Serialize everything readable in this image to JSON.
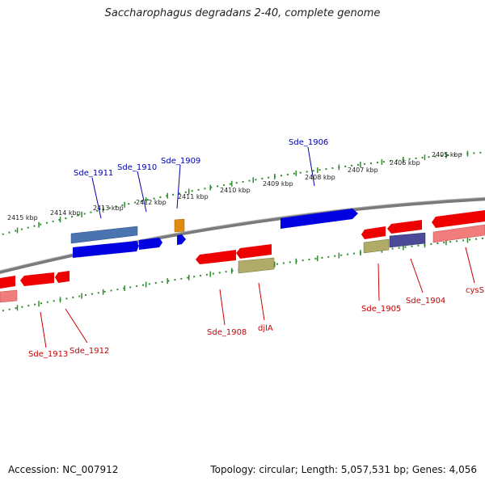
{
  "title": "Saccharophagus degradans 2-40, complete genome",
  "footer": {
    "accession": "Accession: NC_007912",
    "summary": "Topology: circular; Length: 5,057,531 bp; Genes: 4,056"
  },
  "colors": {
    "backbone": "#808080",
    "ticks": "#2e8b2e",
    "forward_gene": "#0000e0",
    "reverse_gene": "#ee0000",
    "forward_label": "#0000aa",
    "reverse_label": "#cc0000",
    "feature_steelblue": "#4a74b0",
    "feature_salmon": "#f07c7c",
    "feature_khaki": "#b0ab68",
    "feature_slate": "#4a4a98",
    "feature_orange": "#e08a10"
  },
  "ruler_labels": [
    "2405 kbp",
    "2406 kbp",
    "2407 kbp",
    "2408 kbp",
    "2409 kbp",
    "2410 kbp",
    "2411 kbp",
    "2412 kbp",
    "2413 kbp",
    "2414 kbp",
    "2415 kbp"
  ],
  "forward_labels": [
    "Sde_1906",
    "Sde_1909",
    "Sde_1910",
    "Sde_1911"
  ],
  "reverse_labels": [
    "cysS",
    "Sde_1904",
    "Sde_1905",
    "djlA",
    "Sde_1908",
    "Sde_1912",
    "Sde_1913"
  ]
}
